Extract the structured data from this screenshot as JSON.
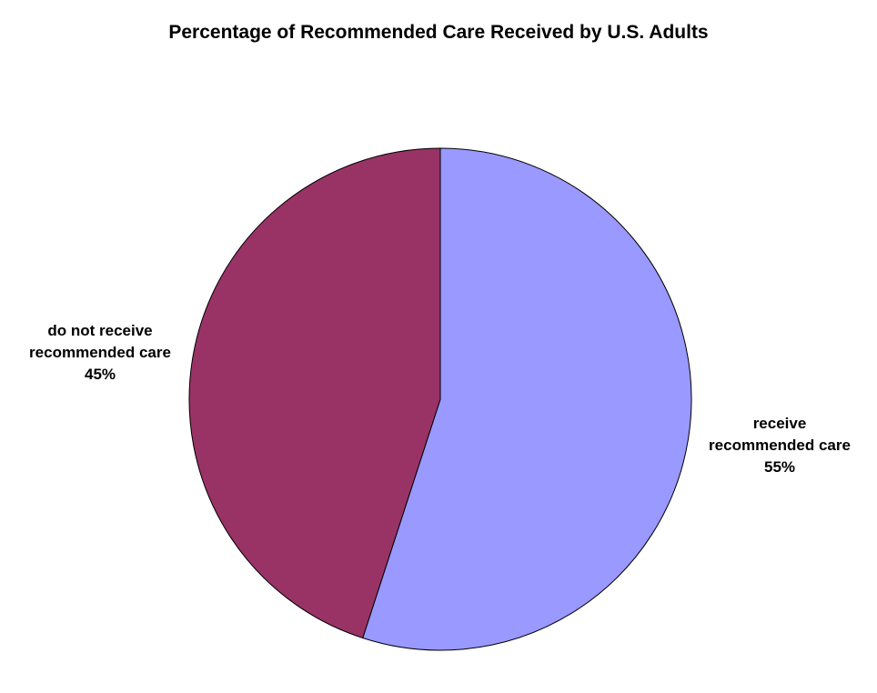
{
  "chart_data": {
    "type": "pie",
    "title": "Percentage of Recommended Care Received by U.S. Adults",
    "slices": [
      {
        "label_lines": [
          "receive",
          "recommended care"
        ],
        "value_label": "55%",
        "value": 55,
        "color": "#9999ff"
      },
      {
        "label_lines": [
          "do not receive",
          "recommended care"
        ],
        "value_label": "45%",
        "value": 45,
        "color": "#993366"
      }
    ],
    "start_angle_deg": 0,
    "direction": "clockwise",
    "legend": "none"
  }
}
